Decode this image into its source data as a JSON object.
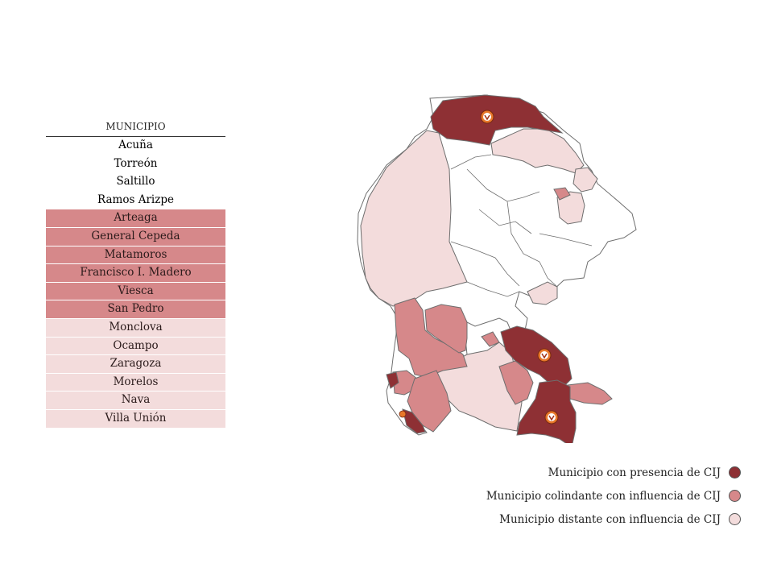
{
  "table": {
    "header": "MUNICIPIO",
    "rows": [
      {
        "name": "Acuña",
        "category": "presencia"
      },
      {
        "name": "Torreón",
        "category": "presencia"
      },
      {
        "name": "Saltillo",
        "category": "presencia"
      },
      {
        "name": "Ramos Arizpe",
        "category": "presencia"
      },
      {
        "name": "Arteaga",
        "category": "colindante"
      },
      {
        "name": "General Cepeda",
        "category": "colindante"
      },
      {
        "name": "Matamoros",
        "category": "colindante"
      },
      {
        "name": "Francisco I. Madero",
        "category": "colindante"
      },
      {
        "name": "Viesca",
        "category": "colindante"
      },
      {
        "name": "San Pedro",
        "category": "colindante"
      },
      {
        "name": "Monclova",
        "category": "distante"
      },
      {
        "name": "Ocampo",
        "category": "distante"
      },
      {
        "name": "Zaragoza",
        "category": "distante"
      },
      {
        "name": "Morelos",
        "category": "distante"
      },
      {
        "name": "Nava",
        "category": "distante"
      },
      {
        "name": "Villa Unión",
        "category": "distante"
      }
    ]
  },
  "legend": {
    "presencia": "Municipio con presencia de CIJ",
    "colindante": "Municipio colindante con influencia de CIJ",
    "distante": "Municipio distante con influencia de CIJ"
  },
  "colors": {
    "presencia": "#8e3034",
    "colindante": "#d6888a",
    "distante": "#f3dcdc",
    "none": "#ffffff",
    "border": "#6e6e6e",
    "marker": "#e8782a"
  },
  "icons": {
    "cij_marker": "cij-logo-icon"
  }
}
